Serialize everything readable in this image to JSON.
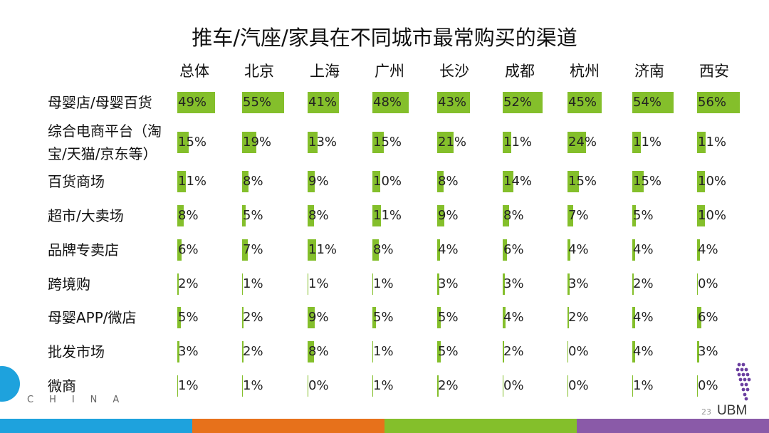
{
  "chart_data": {
    "type": "table",
    "title": "推车/汽座/家具在不同城市最常购买的渠道",
    "columns": [
      "总体",
      "北京",
      "上海",
      "广州",
      "长沙",
      "成都",
      "杭州",
      "济南",
      "西安"
    ],
    "rows": [
      {
        "label": "母婴店/母婴百货",
        "values": [
          49,
          55,
          41,
          48,
          43,
          52,
          45,
          54,
          56
        ],
        "display": [
          "49%",
          "55%",
          "41%",
          "48%",
          "43%",
          "52%",
          "45%",
          "54%",
          "56%"
        ]
      },
      {
        "label": "综合电商平台（淘宝/天猫/京东等）",
        "label_lines": [
          "综合电商平台（淘",
          "宝/天猫/京东等）"
        ],
        "values": [
          15,
          19,
          13,
          15,
          21,
          11,
          24,
          11,
          11
        ],
        "display": [
          "15%",
          "19%",
          "13%",
          "15%",
          "21%",
          "11%",
          "24%",
          "11%",
          "11%"
        ]
      },
      {
        "label": "百货商场",
        "values": [
          11,
          8,
          9,
          10,
          8,
          14,
          15,
          15,
          10
        ],
        "display": [
          "11%",
          "8%",
          "9%",
          "10%",
          "8%",
          "14%",
          "15%",
          "15%",
          "10%"
        ]
      },
      {
        "label": "超市/大卖场",
        "values": [
          8,
          5,
          8,
          11,
          9,
          8,
          7,
          5,
          10
        ],
        "display": [
          "8%",
          "5%",
          "8%",
          "11%",
          "9%",
          "8%",
          "7%",
          "5%",
          "10%"
        ]
      },
      {
        "label": "品牌专卖店",
        "values": [
          6,
          7,
          11,
          8,
          4,
          6,
          4,
          4,
          4
        ],
        "display": [
          "6%",
          "7%",
          "11%",
          "8%",
          "4%",
          "6%",
          "4%",
          "4%",
          "4%"
        ]
      },
      {
        "label": "跨境购",
        "values": [
          2,
          1,
          1,
          1,
          3,
          3,
          3,
          2,
          0
        ],
        "display": [
          "2%",
          "1%",
          "1%",
          "1%",
          "3%",
          "3%",
          "3%",
          "2%",
          "0%"
        ]
      },
      {
        "label": "母婴APP/微店",
        "values": [
          5,
          2,
          9,
          5,
          5,
          4,
          2,
          4,
          6
        ],
        "display": [
          "5%",
          "2%",
          "9%",
          "5%",
          "5%",
          "4%",
          "2%",
          "4%",
          "6%"
        ]
      },
      {
        "label": "批发市场",
        "values": [
          3,
          2,
          8,
          1,
          5,
          2,
          0,
          4,
          3
        ],
        "display": [
          "3%",
          "2%",
          "8%",
          "1%",
          "5%",
          "2%",
          "0%",
          "4%",
          "3%"
        ]
      },
      {
        "label": "微商",
        "values": [
          1,
          1,
          0,
          1,
          2,
          0,
          0,
          1,
          0
        ],
        "display": [
          "1%",
          "1%",
          "0%",
          "1%",
          "2%",
          "0%",
          "0%",
          "1%",
          "0%"
        ]
      }
    ],
    "max_value": 56,
    "bar_color": "#84bf2b"
  },
  "footer": {
    "page_number": "23",
    "brand": "UBM",
    "left_logo_text": "CHINA"
  },
  "colors": {
    "stripe": [
      "#1ea2dd",
      "#e7711b",
      "#84bf2b",
      "#8a5aa8"
    ]
  }
}
